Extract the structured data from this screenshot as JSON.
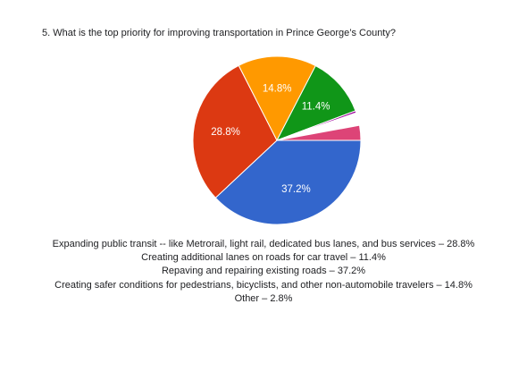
{
  "question": "5. What is the top priority for improving transportation in Prince George’s County?",
  "chart_data": {
    "type": "pie",
    "title": "5. What is the top priority for improving transportation in Prince George’s County?",
    "slices": [
      {
        "label": "Repaving and repairing existing roads",
        "value": 37.2,
        "display": "37.2%",
        "color": "#3366cc"
      },
      {
        "label": "Expanding public transit -- like Metrorail, light rail, dedicated bus lanes, and bus services",
        "value": 28.8,
        "display": "28.8%",
        "color": "#dc3912"
      },
      {
        "label": "Creating safer conditions for pedestrians, bicyclists, and other non-automobile travelers",
        "value": 14.8,
        "display": "14.8%",
        "color": "#ff9900"
      },
      {
        "label": "Creating additional lanes on roads for car travel",
        "value": 11.4,
        "display": "11.4%",
        "color": "#109618"
      },
      {
        "label": "",
        "value": 0.4,
        "display": "",
        "color": "#990099"
      },
      {
        "label": "",
        "value": 2.4,
        "display": "",
        "color": "#ffffff"
      },
      {
        "label": "Other",
        "value": 2.8,
        "display": "",
        "color": "#dd4477"
      }
    ]
  },
  "legend_lines": [
    "Expanding public transit -- like Metrorail, light rail, dedicated bus lanes, and bus services – 28.8%",
    "Creating additional lanes on roads for car travel – 11.4%",
    "Repaving and repairing existing roads – 37.2%",
    "Creating safer conditions for pedestrians, bicyclists, and other non-automobile travelers – 14.8%",
    "Other – 2.8%"
  ]
}
